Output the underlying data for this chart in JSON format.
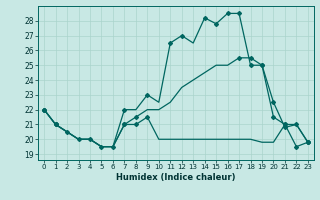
{
  "xlabel": "Humidex (Indice chaleur)",
  "bg_color": "#c8e8e4",
  "grid_color": "#aad4cc",
  "line_color": "#006660",
  "xlim": [
    -0.5,
    23.5
  ],
  "ylim": [
    18.6,
    29.0
  ],
  "yticks": [
    19,
    20,
    21,
    22,
    23,
    24,
    25,
    26,
    27,
    28
  ],
  "xticks": [
    0,
    1,
    2,
    3,
    4,
    5,
    6,
    7,
    8,
    9,
    10,
    11,
    12,
    13,
    14,
    15,
    16,
    17,
    18,
    19,
    20,
    21,
    22,
    23
  ],
  "line1_x": [
    0,
    1,
    2,
    3,
    4,
    5,
    6,
    7,
    8,
    9,
    10,
    11,
    12,
    13,
    14,
    15,
    16,
    17,
    18,
    19,
    20,
    21,
    22,
    23
  ],
  "line1_y": [
    22,
    21,
    20.5,
    20,
    20,
    19.5,
    19.5,
    22,
    22,
    23,
    22.5,
    26.5,
    27,
    26.5,
    28.2,
    27.8,
    28.5,
    28.5,
    25,
    25,
    22.5,
    20.8,
    21,
    19.8
  ],
  "line1_markers_x": [
    0,
    1,
    7,
    9,
    11,
    12,
    14,
    15,
    16,
    17,
    18,
    19,
    20,
    21,
    22,
    23
  ],
  "line1_markers_y": [
    22,
    21,
    22,
    23,
    26.5,
    27,
    28.2,
    27.8,
    28.5,
    28.5,
    25,
    25,
    22.5,
    20.8,
    21,
    19.8
  ],
  "line2_x": [
    0,
    1,
    2,
    3,
    4,
    5,
    6,
    7,
    8,
    9,
    10,
    11,
    12,
    13,
    14,
    15,
    16,
    17,
    18,
    19,
    20,
    21,
    22,
    23
  ],
  "line2_y": [
    22,
    21,
    20.5,
    20,
    20,
    19.5,
    19.5,
    21,
    21.5,
    22,
    22,
    22.5,
    23.5,
    24,
    24.5,
    25,
    25,
    25.5,
    25.5,
    25,
    21.5,
    21,
    21,
    19.8
  ],
  "line2_markers_x": [
    0,
    1,
    7,
    8,
    17,
    18,
    19,
    20,
    21,
    23
  ],
  "line2_markers_y": [
    22,
    21,
    21,
    21.5,
    25.5,
    25.5,
    25,
    21.5,
    21,
    19.8
  ],
  "line3_x": [
    0,
    1,
    2,
    3,
    4,
    5,
    6,
    7,
    8,
    9,
    10,
    11,
    12,
    13,
    14,
    15,
    16,
    17,
    18,
    19,
    20,
    21,
    22,
    23
  ],
  "line3_y": [
    22,
    21,
    20.5,
    20,
    20,
    19.5,
    19.5,
    21,
    21,
    21.5,
    20,
    20,
    20,
    20,
    20,
    20,
    20,
    20,
    20,
    19.8,
    19.8,
    21,
    19.5,
    19.8
  ],
  "line3_markers_x": [
    0,
    1,
    2,
    3,
    4,
    5,
    6,
    7,
    8,
    9,
    21,
    22,
    23
  ],
  "line3_markers_y": [
    22,
    21,
    20.5,
    20,
    20,
    19.5,
    19.5,
    21,
    21,
    21.5,
    21,
    19.5,
    19.8
  ]
}
